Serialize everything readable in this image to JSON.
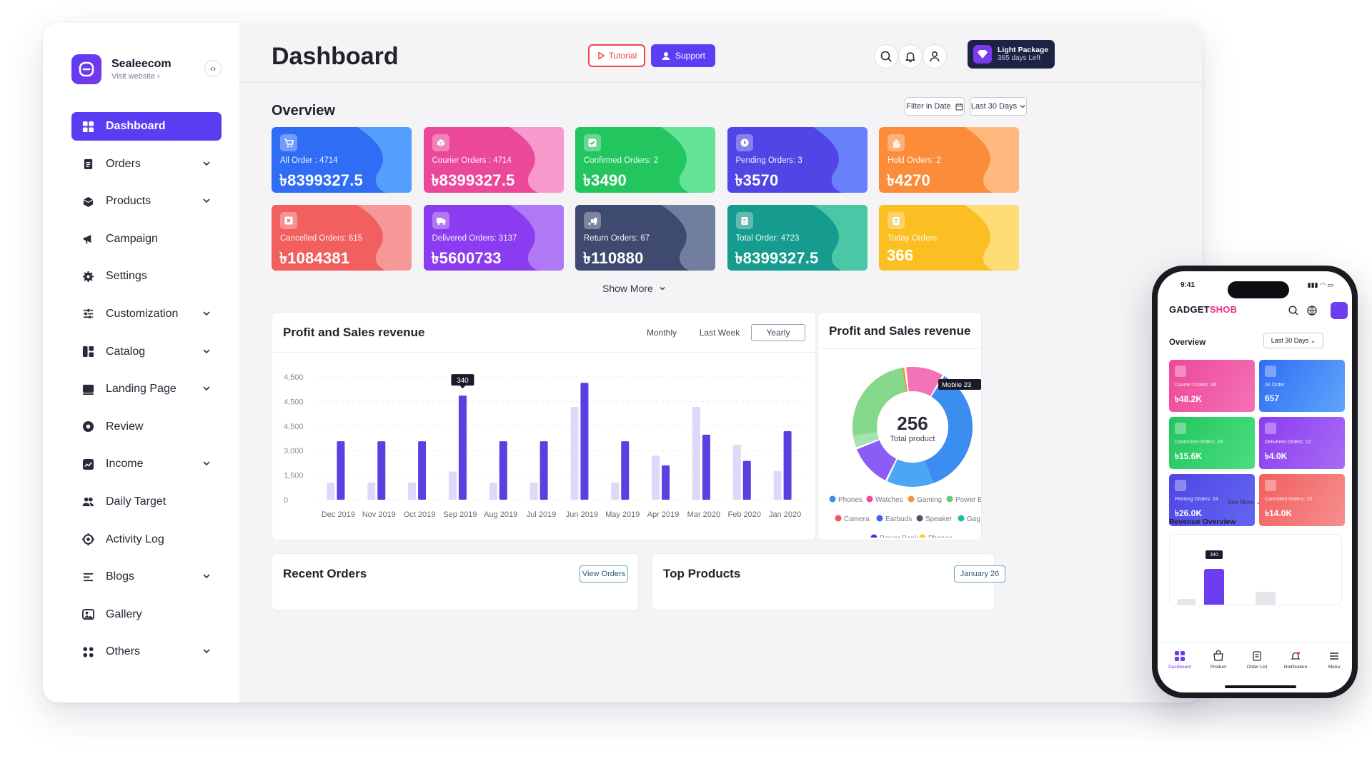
{
  "brand": {
    "name": "Sealeecom",
    "sub": "Visit website ›"
  },
  "sidebar": {
    "items": [
      {
        "label": "Dashboard",
        "icon": "dashboard-icon",
        "active": true,
        "chevron": false
      },
      {
        "label": "Orders",
        "icon": "orders-icon",
        "chevron": true
      },
      {
        "label": "Products",
        "icon": "products-icon",
        "chevron": true
      },
      {
        "label": "Campaign",
        "icon": "megaphone-icon",
        "chevron": false
      },
      {
        "label": "Settings",
        "icon": "gear-icon",
        "chevron": false
      },
      {
        "label": "Customization",
        "icon": "sliders-icon",
        "chevron": true
      },
      {
        "label": "Catalog",
        "icon": "catalog-icon",
        "chevron": true
      },
      {
        "label": "Landing Page",
        "icon": "landing-page-icon",
        "chevron": true
      },
      {
        "label": "Review",
        "icon": "review-icon",
        "chevron": false
      },
      {
        "label": "Income",
        "icon": "income-icon",
        "chevron": true
      },
      {
        "label": "Daily Target",
        "icon": "users-icon",
        "chevron": false
      },
      {
        "label": "Activity Log",
        "icon": "activity-icon",
        "chevron": false
      },
      {
        "label": "Blogs",
        "icon": "blogs-icon",
        "chevron": true
      },
      {
        "label": "Gallery",
        "icon": "gallery-icon",
        "chevron": false
      },
      {
        "label": "Others",
        "icon": "grid-icon",
        "chevron": true
      }
    ]
  },
  "header": {
    "title": "Dashboard",
    "tutorial": "Tutorial",
    "support": "Support",
    "package_title": "Light Package",
    "package_days": "365 days Left"
  },
  "overview": {
    "title": "Overview",
    "filter_date": "Filter in Date",
    "filter_range": "Last 30 Days",
    "show_more": "Show More",
    "cards": [
      {
        "label": "All Order : 4714",
        "value": "৳8399327.5",
        "icon": "cart-icon",
        "from": "#2f6df5",
        "to": "#58a8ff"
      },
      {
        "label": "Courier Orders : 4714",
        "value": "৳8399327.5",
        "icon": "box-icon",
        "from": "#ec4899",
        "to": "#f9a8d4"
      },
      {
        "label": "Confirmed Orders: 2",
        "value": "৳3490",
        "icon": "check-icon",
        "from": "#22c55e",
        "to": "#6ee7a0"
      },
      {
        "label": "Pending Orders: 3",
        "value": "৳3570",
        "icon": "clock-icon",
        "from": "#4f46e5",
        "to": "#6d8bff"
      },
      {
        "label": "Hold Orders: 2",
        "value": "৳4270",
        "icon": "hand-icon",
        "from": "#fb8c3a",
        "to": "#ffc089"
      },
      {
        "label": "Cancelled Orders: 615",
        "value": "৳1084381",
        "icon": "close-icon",
        "from": "#f25f5f",
        "to": "#f7a2a2"
      },
      {
        "label": "Delivered Orders: 3137",
        "value": "৳5600733",
        "icon": "truck-icon",
        "from": "#8b3cf0",
        "to": "#b584f7"
      },
      {
        "label": "Return Orders: 67",
        "value": "৳110880",
        "icon": "return-truck-icon",
        "from": "#3f4a70",
        "to": "#7a87a6"
      },
      {
        "label": "Total Order: 4723",
        "value": "৳8399327.5",
        "icon": "clipboard-icon",
        "from": "#169c8e",
        "to": "#54cfa8"
      },
      {
        "label": "Today Orders",
        "value": "366",
        "icon": "clipboard-icon",
        "from": "#fbbf24",
        "to": "#ffe083"
      }
    ]
  },
  "revenue": {
    "title": "Profit and Sales revenue",
    "tabs": [
      "Monthly",
      "Last Week",
      "Yearly"
    ],
    "active_tab": "Yearly"
  },
  "chart_data": {
    "type": "bar",
    "categories": [
      "Dec 2019",
      "Nov 2019",
      "Oct 2019",
      "Sep 2019",
      "Aug 2019",
      "Jul 2019",
      "Jun 2019",
      "May 2019",
      "Apr 2019",
      "Mar 2020",
      "Feb 2020",
      "Jan 2020"
    ],
    "y_ticks": [
      "4,500",
      "4,500",
      "4,500",
      "3,000",
      "1,500",
      "0"
    ],
    "ylim": [
      0,
      5000
    ],
    "series": [
      {
        "values": [
          700,
          700,
          700,
          1150,
          700,
          700,
          3780,
          700,
          1800,
          3780,
          2240,
          1170
        ],
        "color": "#dcdafb"
      },
      {
        "values": [
          2380,
          2380,
          2380,
          4240,
          2380,
          2380,
          4760,
          2380,
          1400,
          2650,
          1580,
          2790
        ],
        "color": "#5b3fe0"
      }
    ],
    "tooltip": {
      "category": "Sep 2019",
      "label": "340"
    },
    "grid": true
  },
  "donut": {
    "title": "Profit and Sales revenue",
    "center_value": "256",
    "center_label": "Total product",
    "tooltip": "Mobile 23",
    "legend_rows": [
      [
        {
          "name": "Phones",
          "color": "#3b8ef0"
        },
        {
          "name": "Watches",
          "color": "#ec4899"
        },
        {
          "name": "Gaming",
          "color": "#fb923c"
        },
        {
          "name": "Power B",
          "color": "#5fce6b"
        }
      ],
      [
        {
          "name": "Camera",
          "color": "#f05a5a"
        },
        {
          "name": "Earbuds",
          "color": "#3f63f0"
        },
        {
          "name": "Speaker",
          "color": "#475569"
        },
        {
          "name": "Gag",
          "color": "#22b8a6"
        }
      ],
      [
        {
          "name": "Power Bank",
          "color": "#4b2fd6"
        },
        {
          "name": "Phones",
          "color": "#facc15"
        }
      ]
    ]
  },
  "recent": {
    "title": "Recent Orders",
    "button": "View Orders"
  },
  "top_products": {
    "title": "Top Products",
    "button": "January 26"
  },
  "phone": {
    "time": "9:41",
    "status": "▮▮▮ ◠ ▭",
    "logo_a": "GADGET",
    "logo_b": "SHOB",
    "overview": "Overview",
    "range": "Last 30 Days ⌄",
    "cards": [
      {
        "label": "Courier Orders: 36",
        "value": "৳48.2K",
        "from": "#ec4899",
        "to": "#f472b6"
      },
      {
        "label": "All Order",
        "value": "657",
        "from": "#2f6df5",
        "to": "#60a5fa"
      },
      {
        "label": "Confirmed Orders: 29",
        "value": "৳15.6K",
        "from": "#22c55e",
        "to": "#4ade80"
      },
      {
        "label": "Delivered Orders: 12",
        "value": "৳4.0K",
        "from": "#8b3cf0",
        "to": "#a86cf5"
      },
      {
        "label": "Pending Orders: 24",
        "value": "৳26.0K",
        "from": "#4f46e5",
        "to": "#6366f1"
      },
      {
        "label": "Cancelled Orders: 15",
        "value": "৳14.0K",
        "from": "#f25f5f",
        "to": "#f78e8e"
      }
    ],
    "see_more": "See More ⌄",
    "revenue_overview": "Revenue Overview",
    "mini_tooltip": "340",
    "nav": [
      "Dashboard",
      "Product",
      "Order List",
      "Notification",
      "Menu"
    ]
  }
}
